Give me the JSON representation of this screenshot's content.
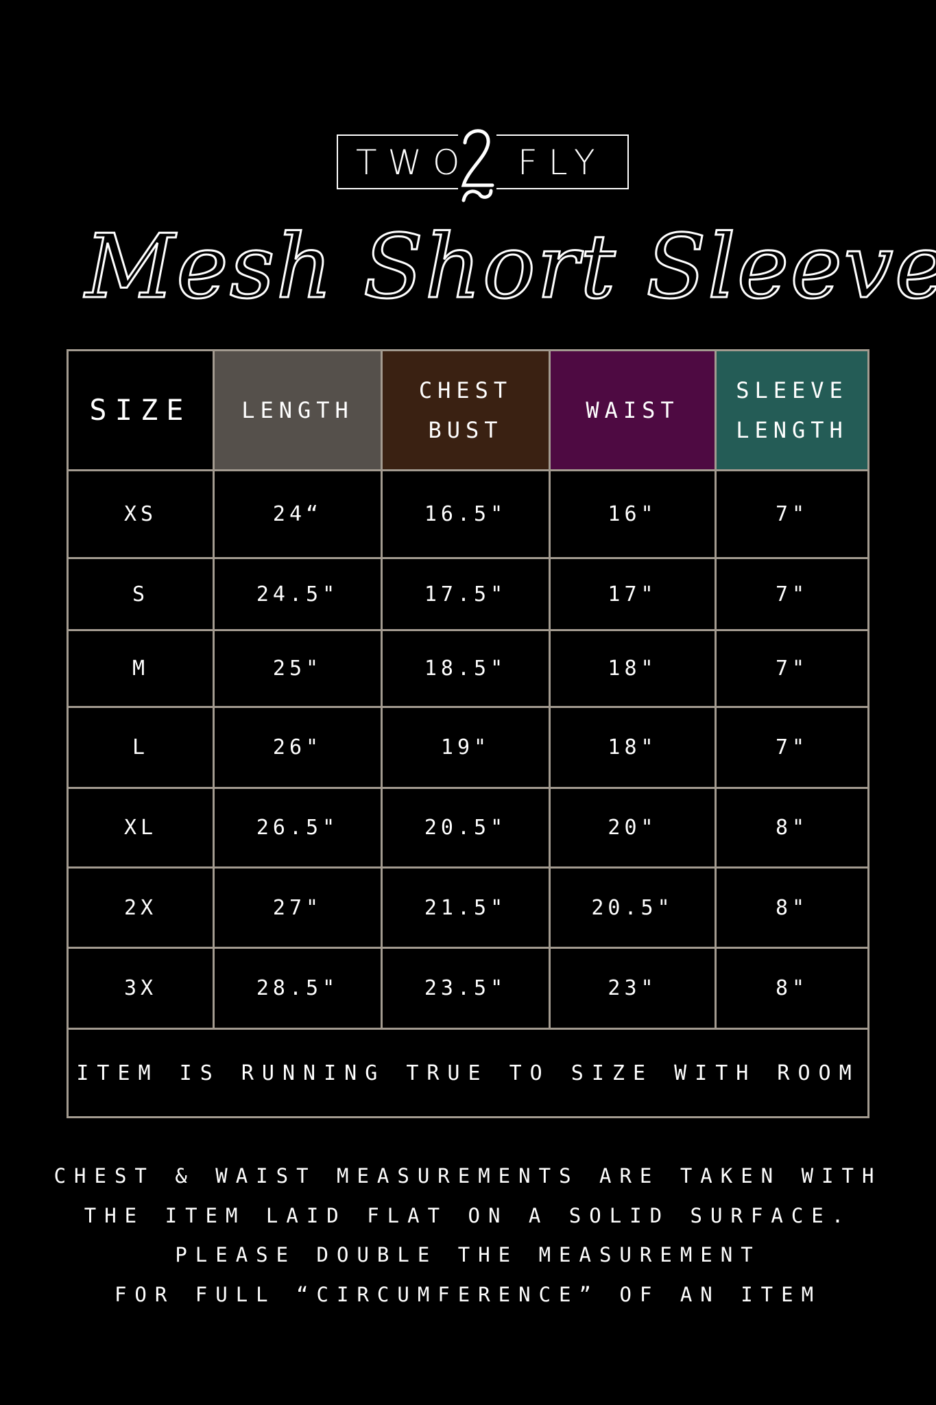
{
  "brand": {
    "left": "TWO",
    "middle": "2",
    "right": "FLY"
  },
  "title": "Mesh Short Sleeve",
  "colors": {
    "length": "#55504b",
    "chest": "#3a2112",
    "waist": "#4e0a42",
    "sleeve": "#245c56",
    "border": "#a39b90"
  },
  "table": {
    "headers": [
      {
        "lines": [
          "SIZE"
        ]
      },
      {
        "lines": [
          "LENGTH"
        ]
      },
      {
        "lines": [
          "CHEST",
          "BUST"
        ]
      },
      {
        "lines": [
          "WAIST"
        ]
      },
      {
        "lines": [
          "SLEEVE",
          "LENGTH"
        ]
      }
    ],
    "rows": [
      [
        "XS",
        "24“",
        "16.5\"",
        "16\"",
        "7\""
      ],
      [
        "S",
        "24.5\"",
        "17.5\"",
        "17\"",
        "7\""
      ],
      [
        "M",
        "25\"",
        "18.5\"",
        "18\"",
        "7\""
      ],
      [
        "L",
        "26\"",
        "19\"",
        "18\"",
        "7\""
      ],
      [
        "XL",
        "26.5\"",
        "20.5\"",
        "20\"",
        "8\""
      ],
      [
        "2X",
        "27\"",
        "21.5\"",
        "20.5\"",
        "8\""
      ],
      [
        "3X",
        "28.5\"",
        "23.5\"",
        "23\"",
        "8\""
      ]
    ],
    "note": "ITEM IS RUNNING TRUE TO SIZE WITH ROOM"
  },
  "footer": [
    "CHEST & WAIST MEASUREMENTS ARE TAKEN WITH",
    "THE ITEM LAID FLAT ON A SOLID SURFACE.",
    "PLEASE DOUBLE THE MEASUREMENT",
    "FOR FULL “CIRCUMFERENCE” OF AN ITEM"
  ]
}
